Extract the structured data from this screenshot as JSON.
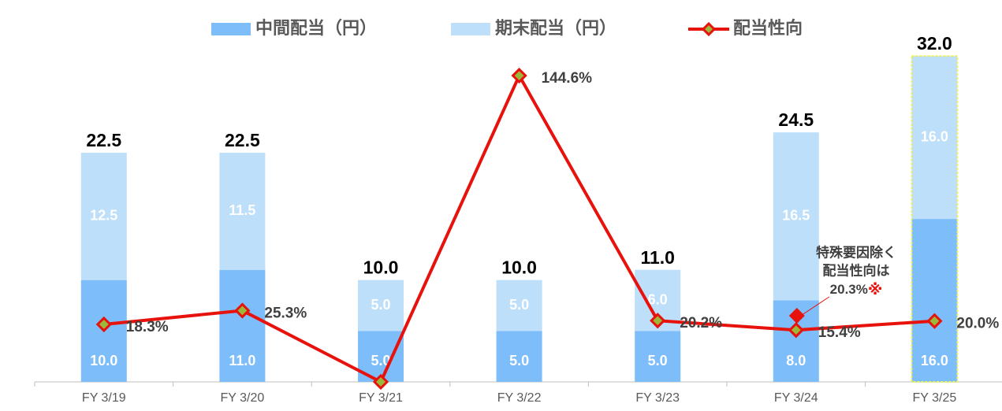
{
  "chart_data": {
    "type": "bar",
    "categories": [
      "FY 3/19",
      "FY 3/20",
      "FY 3/21",
      "FY 3/22",
      "FY 3/23",
      "FY 3/24",
      "FY 3/25"
    ],
    "series": [
      {
        "name": "中間配当（円）",
        "color": "#7dbdf9",
        "values": [
          10.0,
          11.0,
          5.0,
          5.0,
          5.0,
          8.0,
          16.0
        ],
        "value_labels": [
          "10.0",
          "11.0",
          "5.0",
          "5.0",
          "5.0",
          "8.0",
          "16.0"
        ]
      },
      {
        "name": "期末配当（円）",
        "color": "#bddffa",
        "values": [
          12.5,
          11.5,
          5.0,
          5.0,
          6.0,
          16.5,
          16.0
        ],
        "value_labels": [
          "12.5",
          "11.5",
          "5.0",
          "5.0",
          "6.0",
          "16.5",
          "16.0"
        ]
      },
      {
        "name": "配当性向",
        "type": "line",
        "axis": "y2",
        "color": "#e8120c",
        "marker_color": "#9cb83a",
        "values": [
          18.3,
          25.3,
          -10.9,
          144.6,
          20.2,
          15.4,
          20.0
        ],
        "value_labels": [
          "18.3%",
          "25.3%",
          null,
          "144.6%",
          "20.2%",
          "15.4%",
          "20.0%"
        ]
      }
    ],
    "totals": [
      "22.5",
      "22.5",
      "10.0",
      "10.0",
      "11.0",
      "24.5",
      "32.0"
    ],
    "outlined": [
      false,
      false,
      false,
      false,
      false,
      false,
      true
    ],
    "outline_color": "#eef25c",
    "annotation": {
      "lines": [
        "特殊要因除く",
        "配当性向は"
      ],
      "value_label": "20.3%",
      "mark": "※",
      "value": 20.3,
      "category": 5,
      "color": "#e8120c"
    },
    "ylim": [
      0,
      37.5
    ],
    "y2lim": [
      -10.9,
      183
    ]
  }
}
